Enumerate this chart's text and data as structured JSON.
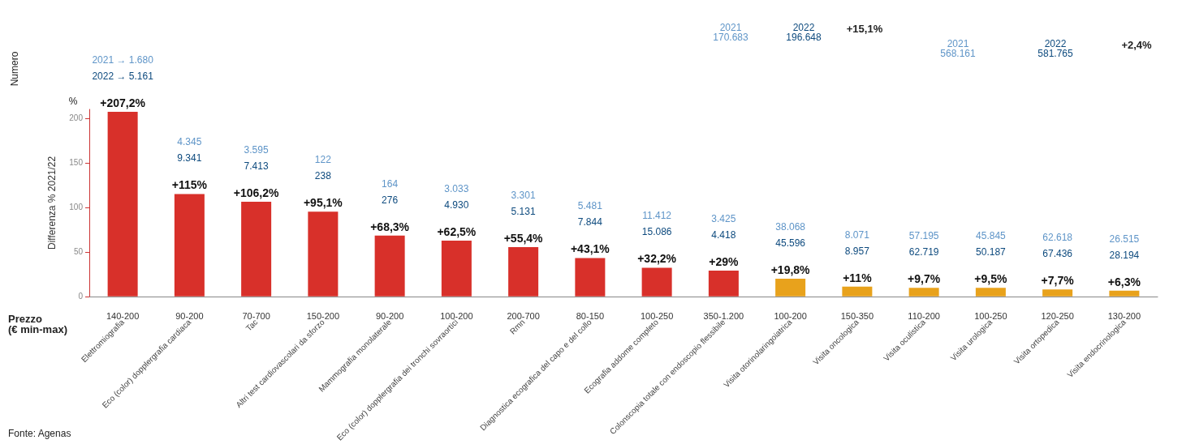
{
  "chart_data": {
    "type": "bar",
    "ylabel": "Differenza % 2021/22",
    "categories": [
      "Elettromiografia",
      "Eco (color) dopplergrafia cardiaca",
      "Tac",
      "Altri test cardiovascolari da sforzo",
      "Mammografia monolaterale",
      "Eco (color) dopplergrafia dei tronchi sovraortici",
      "Rmn",
      "Diagnostica ecografica del capo e del collo",
      "Ecografia addome completo",
      "Colonscopia totale con endoscopio flessibile",
      "Visita otorinolaringoiatrica",
      "Visita oncologica",
      "Visita oculistica",
      "Visita urologica",
      "Visita ortopedica",
      "Visita endocrinologica"
    ],
    "values": [
      207.2,
      115,
      106.2,
      95.1,
      68.3,
      62.5,
      55.4,
      43.1,
      32.2,
      29,
      19.8,
      11,
      9.7,
      9.5,
      7.7,
      6.3
    ],
    "value_labels": [
      "+207,2%",
      "+115%",
      "+106,2%",
      "+95,1%",
      "+68,3%",
      "+62,5%",
      "+55,4%",
      "+43,1%",
      "+32,2%",
      "+29%",
      "+19,8%",
      "+11%",
      "+9,7%",
      "+9,5%",
      "+7,7%",
      "+6,3%"
    ],
    "colors": [
      "#d8302a",
      "#d8302a",
      "#d8302a",
      "#d8302a",
      "#d8302a",
      "#d8302a",
      "#d8302a",
      "#d8302a",
      "#d8302a",
      "#d8302a",
      "#e8a21c",
      "#e8a21c",
      "#e8a21c",
      "#e8a21c",
      "#e8a21c",
      "#e8a21c"
    ],
    "ylim": [
      0,
      210
    ],
    "yticks": [
      0,
      50,
      100,
      150,
      200
    ],
    "grid": false,
    "annotations": [
      "Numero",
      "%",
      "Prezzo\n(€ min-max)",
      "Fonte: Agenas",
      "2021\n170.683",
      "2022\n196.648",
      "+15,1%",
      "2021\n568.161",
      "2022\n581.765",
      "+2,4%",
      "140-200",
      "2021 → 1.680",
      "2022 → 5.161",
      "90-200",
      "4.345",
      "9.341",
      "70-700",
      "3.595",
      "7.413",
      "150-200",
      "122",
      "238",
      "90-200",
      "164",
      "276",
      "100-200",
      "3.033",
      "4.930",
      "200-700",
      "3.301",
      "5.131",
      "80-150",
      "5.481",
      "7.844",
      "100-250",
      "11.412",
      "15.086",
      "350-1.200",
      "3.425",
      "4.418",
      "100-200",
      "38.068",
      "45.596",
      "150-350",
      "8.071",
      "8.957",
      "110-200",
      "57.195",
      "62.719",
      "100-250",
      "45.845",
      "50.187",
      "120-250",
      "62.618",
      "67.436",
      "130-200",
      "26.515",
      "28.194"
    ]
  }
}
